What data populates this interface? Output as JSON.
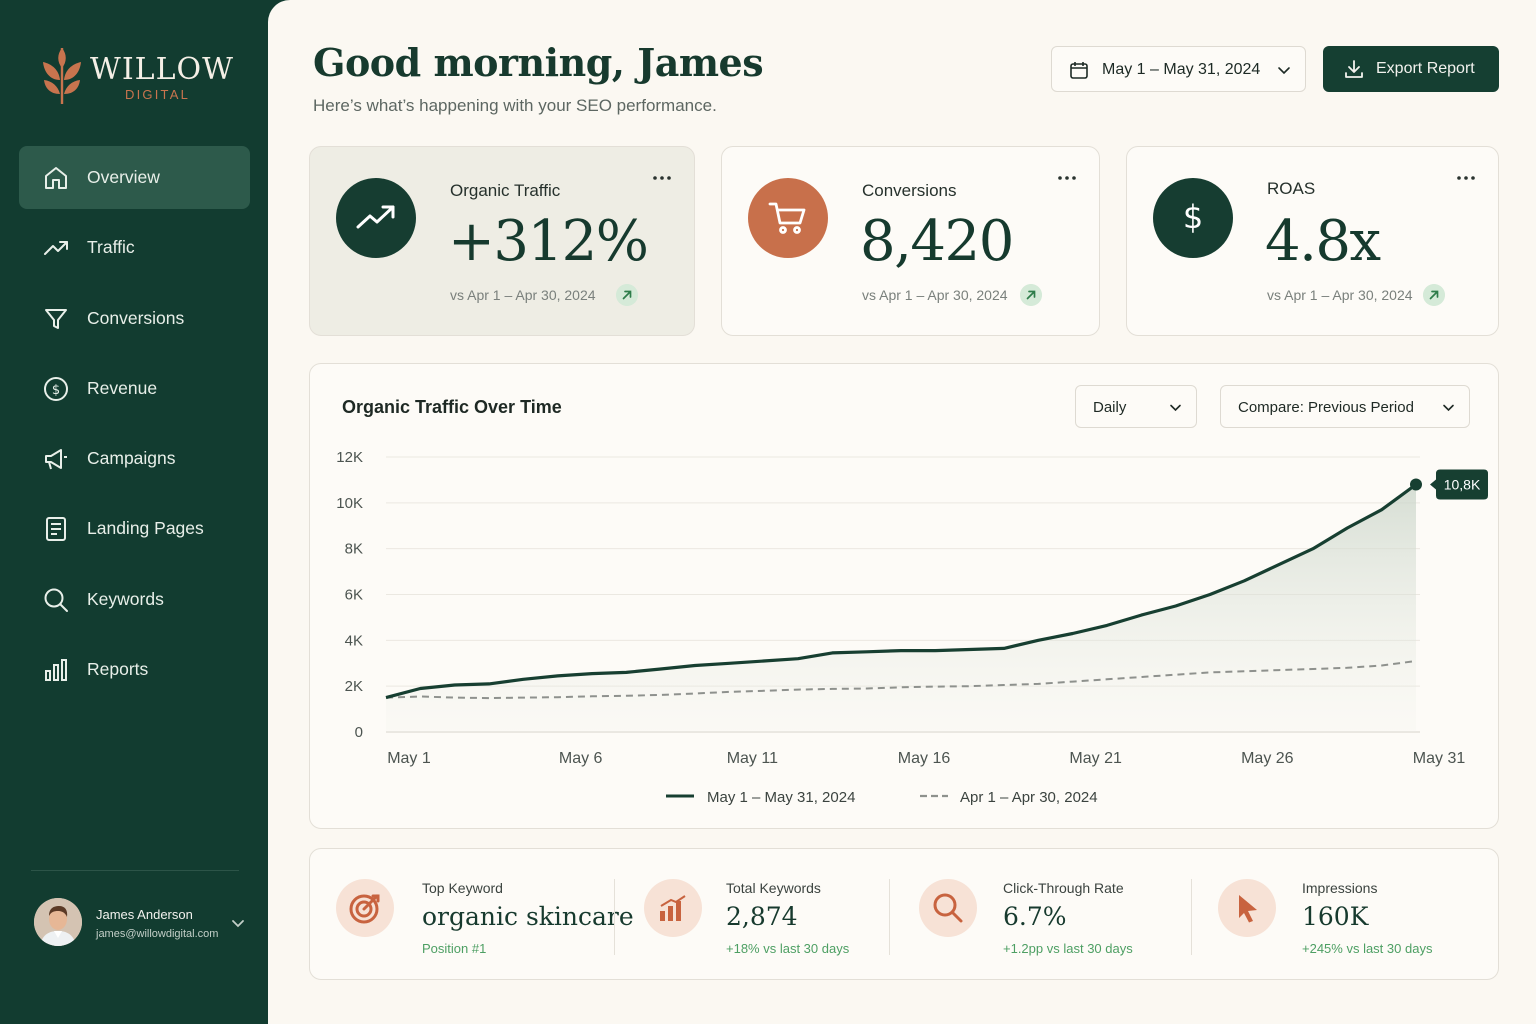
{
  "brand": {
    "name": "WILLOW",
    "sub": "DIGITAL"
  },
  "nav": [
    {
      "label": "Overview",
      "icon": "home-icon",
      "active": true
    },
    {
      "label": "Traffic",
      "icon": "trend-icon"
    },
    {
      "label": "Conversions",
      "icon": "funnel-icon"
    },
    {
      "label": "Revenue",
      "icon": "dollar-circle-icon"
    },
    {
      "label": "Campaigns",
      "icon": "megaphone-icon"
    },
    {
      "label": "Landing Pages",
      "icon": "document-icon"
    },
    {
      "label": "Keywords",
      "icon": "search-icon"
    },
    {
      "label": "Reports",
      "icon": "bar-chart-icon"
    }
  ],
  "user": {
    "name": "James Anderson",
    "email": "james@willowdigital.com"
  },
  "header": {
    "greeting": "Good morning, James",
    "subtitle": "Here’s what’s happening with your SEO performance.",
    "date_range": "May 1 – May 31, 2024",
    "export_label": "Export Report"
  },
  "kpis": [
    {
      "label": "Organic Traffic",
      "value": "+312%",
      "compare": "vs Apr 1 – Apr 30, 2024",
      "icon": "trend-up-icon",
      "color": "#163d31"
    },
    {
      "label": "Conversions",
      "value": "8,420",
      "compare": "vs Apr 1 – Apr 30, 2024",
      "icon": "cart-icon",
      "color": "#c8704b"
    },
    {
      "label": "ROAS",
      "value": "4.8x",
      "compare": "vs Apr 1 – Apr 30, 2024",
      "icon": "dollar-icon",
      "color": "#163d31"
    }
  ],
  "chart": {
    "title": "Organic Traffic Over Time",
    "granularity": "Daily",
    "compare": "Compare: Previous Period",
    "tooltip": "10,8K"
  },
  "chart_data": {
    "type": "line",
    "ylim": [
      0,
      12000
    ],
    "y_ticks": [
      "0",
      "2K",
      "4K",
      "6K",
      "8K",
      "10K",
      "12K"
    ],
    "x_ticks": [
      "May 1",
      "May 6",
      "May 11",
      "May 16",
      "May 21",
      "May 26",
      "May 31"
    ],
    "x_days": [
      1,
      2,
      3,
      4,
      5,
      6,
      7,
      8,
      9,
      10,
      11,
      12,
      13,
      14,
      15,
      16,
      17,
      18,
      19,
      20,
      21,
      22,
      23,
      24,
      25,
      26,
      27,
      28,
      29,
      30,
      31
    ],
    "series": [
      {
        "name": "May 1 – May 31, 2024",
        "color": "#173f31",
        "values": [
          1500,
          1900,
          2050,
          2100,
          2300,
          2450,
          2550,
          2600,
          2750,
          2900,
          3000,
          3100,
          3200,
          3450,
          3500,
          3550,
          3550,
          3600,
          3650,
          4000,
          4300,
          4650,
          5100,
          5500,
          6000,
          6600,
          7300,
          8000,
          8900,
          9700,
          10800
        ]
      },
      {
        "name": "Apr 1 – Apr 30, 2024",
        "color": "#8e918d",
        "values": [
          1500,
          1550,
          1500,
          1480,
          1500,
          1520,
          1560,
          1580,
          1620,
          1680,
          1750,
          1800,
          1850,
          1880,
          1900,
          1950,
          1980,
          2000,
          2050,
          2100,
          2200,
          2300,
          2400,
          2500,
          2600,
          2650,
          2700,
          2750,
          2800,
          2900,
          3100
        ]
      }
    ]
  },
  "stats": [
    {
      "label": "Top Keyword",
      "value": "organic skincare",
      "sub": "Position #1",
      "icon": "target-icon"
    },
    {
      "label": "Total Keywords",
      "value": "2,874",
      "sub": "+18% vs last 30 days",
      "icon": "bar-chart-icon"
    },
    {
      "label": "Click-Through Rate",
      "value": "6.7%",
      "sub": "+1.2pp vs last 30 days",
      "icon": "search-icon"
    },
    {
      "label": "Impressions",
      "value": "160K",
      "sub": "+245% vs last 30 days",
      "icon": "cursor-icon"
    }
  ]
}
